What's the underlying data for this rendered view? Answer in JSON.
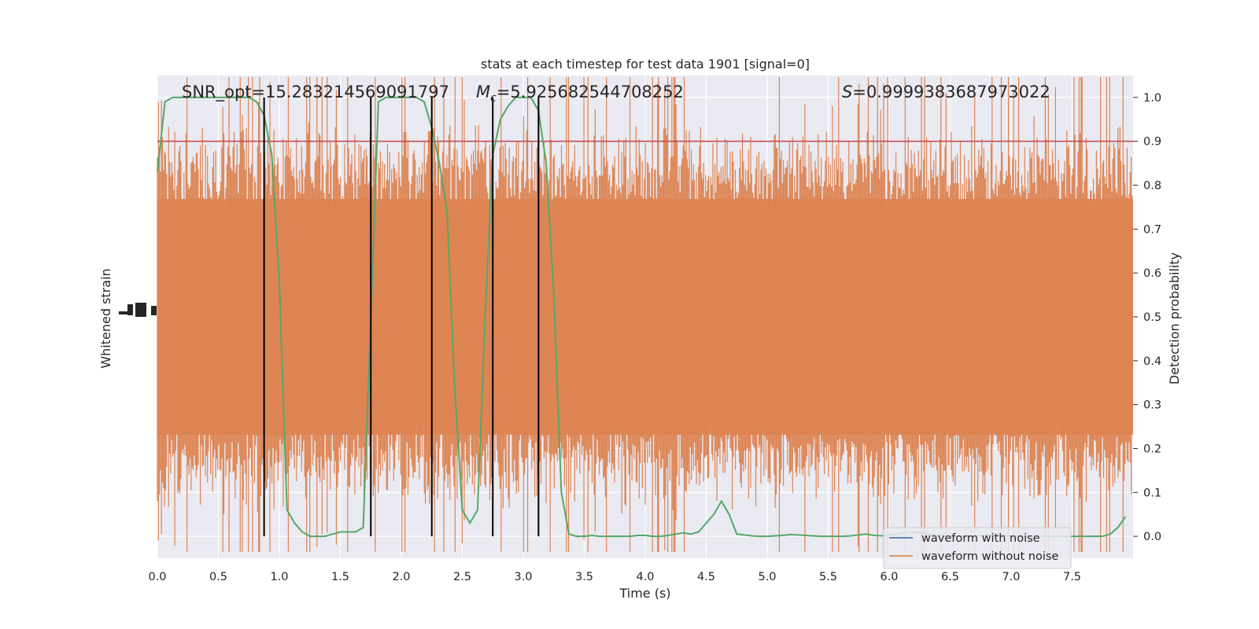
{
  "chart_data": {
    "type": "line",
    "title": "stats at each timestep for test data 1901 [signal=0]",
    "xlabel": "Time (s)",
    "ylabel_left": "Whitened strain",
    "ylabel_right": "Detection probability",
    "xlim": [
      0.0,
      8.0
    ],
    "ylim_right": [
      -0.05,
      1.05
    ],
    "x_ticks": [
      "0.0",
      "0.5",
      "1.0",
      "1.5",
      "2.0",
      "2.5",
      "3.0",
      "3.5",
      "4.0",
      "4.5",
      "5.0",
      "5.5",
      "6.0",
      "6.5",
      "7.0",
      "7.5"
    ],
    "x_tick_values": [
      0.0,
      0.5,
      1.0,
      1.5,
      2.0,
      2.5,
      3.0,
      3.5,
      4.0,
      4.5,
      5.0,
      5.5,
      6.0,
      6.5,
      7.0,
      7.5
    ],
    "y_right_ticks": [
      "0.0",
      "0.1",
      "0.2",
      "0.3",
      "0.4",
      "0.5",
      "0.6",
      "0.7",
      "0.8",
      "0.9",
      "1.0"
    ],
    "y_right_tick_values": [
      0.0,
      0.1,
      0.2,
      0.3,
      0.4,
      0.5,
      0.6,
      0.7,
      0.8,
      0.9,
      1.0
    ],
    "grid": true,
    "legend_position": "lower-right",
    "threshold": {
      "value": 0.9,
      "color": "#c44e52"
    },
    "vertical_markers": [
      0.875,
      1.75,
      2.25,
      2.75,
      3.125
    ],
    "annotations": {
      "snr": "SNR_opt=15.283214569091797",
      "mc_symbol": "M",
      "mc_subscript": "c",
      "mc_value": "=5.925682544708252",
      "s_symbol": "S",
      "s_value": "=0.9999383687973022"
    },
    "series": [
      {
        "name": "waveform with noise",
        "color": "#4c72b0",
        "kind": "strain"
      },
      {
        "name": "waveform without noise",
        "color": "#dd8452",
        "kind": "strain"
      },
      {
        "color": "#55a868",
        "kind": "probability",
        "x": [
          0.0,
          0.0625,
          0.125,
          0.1875,
          0.25,
          0.3125,
          0.375,
          0.4375,
          0.5,
          0.5625,
          0.625,
          0.6875,
          0.75,
          0.8125,
          0.875,
          0.9375,
          1.0,
          1.0625,
          1.125,
          1.1875,
          1.25,
          1.3125,
          1.375,
          1.4375,
          1.5,
          1.5625,
          1.625,
          1.6875,
          1.75,
          1.8125,
          1.875,
          1.9375,
          2.0,
          2.0625,
          2.125,
          2.1875,
          2.25,
          2.3125,
          2.375,
          2.4375,
          2.5,
          2.5625,
          2.625,
          2.6875,
          2.75,
          2.8125,
          2.875,
          2.9375,
          3.0,
          3.0625,
          3.125,
          3.1875,
          3.25,
          3.3125,
          3.375,
          3.4375,
          3.5,
          3.5625,
          3.625,
          3.6875,
          3.75,
          3.8125,
          3.875,
          3.9375,
          4.0,
          4.0625,
          4.125,
          4.1875,
          4.25,
          4.3125,
          4.375,
          4.4375,
          4.5,
          4.5625,
          4.625,
          4.6875,
          4.75,
          4.8125,
          4.875,
          4.9375,
          5.0,
          5.0625,
          5.125,
          5.1875,
          5.25,
          5.3125,
          5.375,
          5.4375,
          5.5,
          5.5625,
          5.625,
          5.6875,
          5.75,
          5.8125,
          5.875,
          5.9375,
          6.0,
          6.0625,
          6.125,
          6.1875,
          6.25,
          6.3125,
          6.375,
          6.4375,
          6.5,
          6.5625,
          6.625,
          6.6875,
          6.75,
          6.8125,
          6.875,
          6.9375,
          7.0,
          7.0625,
          7.125,
          7.1875,
          7.25,
          7.3125,
          7.375,
          7.4375,
          7.5,
          7.5625,
          7.625,
          7.6875,
          7.75,
          7.8125,
          7.875,
          7.9375
        ],
        "y": [
          0.83,
          0.99,
          1.0,
          1.0,
          1.0,
          1.0,
          1.0,
          1.0,
          1.0,
          1.0,
          1.0,
          1.0,
          1.0,
          0.99,
          0.96,
          0.87,
          0.58,
          0.06,
          0.03,
          0.01,
          0.0,
          0.0,
          0.0,
          0.005,
          0.01,
          0.01,
          0.01,
          0.02,
          0.5,
          0.99,
          1.0,
          1.0,
          1.0,
          1.0,
          1.0,
          0.99,
          0.93,
          0.85,
          0.74,
          0.34,
          0.06,
          0.03,
          0.06,
          0.5,
          0.87,
          0.95,
          0.98,
          1.0,
          1.0,
          1.0,
          0.97,
          0.85,
          0.55,
          0.1,
          0.005,
          0.0,
          0.0,
          0.002,
          0.0,
          0.0,
          0.0,
          0.0,
          0.0,
          0.002,
          0.002,
          0.0,
          0.0,
          0.002,
          0.005,
          0.008,
          0.005,
          0.01,
          0.03,
          0.05,
          0.08,
          0.05,
          0.005,
          0.003,
          0.001,
          0.0,
          0.0,
          0.001,
          0.002,
          0.004,
          0.003,
          0.002,
          0.001,
          0.0,
          0.0,
          0.0,
          0.0,
          0.001,
          0.003,
          0.005,
          0.002,
          0.001,
          0.003,
          0.005,
          0.008,
          0.01,
          0.008,
          0.005,
          0.003,
          0.001,
          0.0,
          0.0,
          0.0,
          0.0,
          0.002,
          0.002,
          0.003,
          0.002,
          0.001,
          0.0,
          0.0,
          0.0,
          0.0,
          0.0,
          0.0,
          0.0,
          0.0,
          0.0,
          0.0,
          0.0,
          0.0,
          0.005,
          0.02,
          0.045
        ]
      }
    ]
  }
}
